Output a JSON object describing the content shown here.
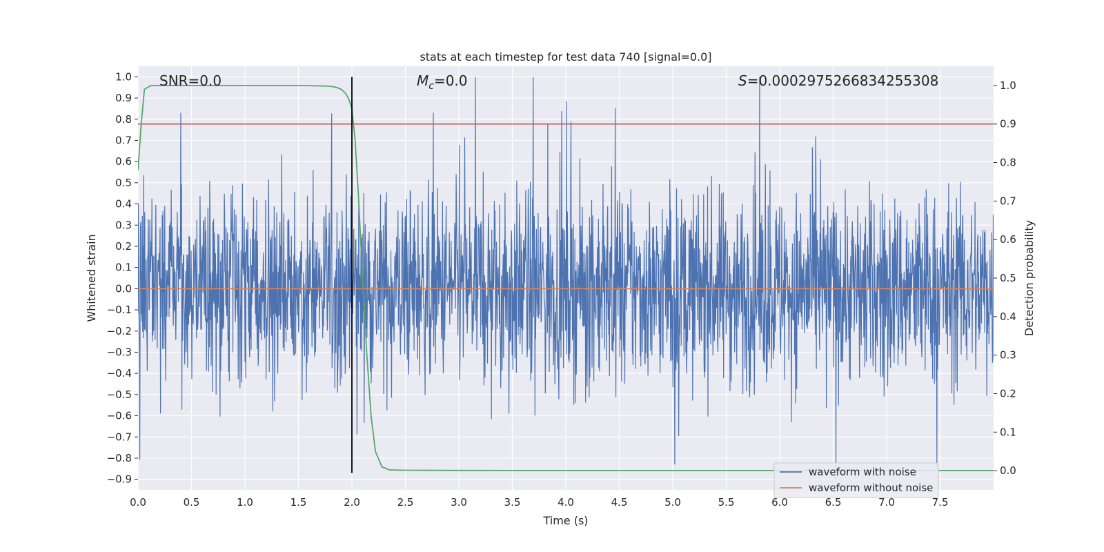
{
  "chart_data": {
    "type": "line",
    "title": "stats at each timestep for test data 740 [signal=0.0]",
    "xlabel": "Time (s)",
    "ylabel_left": "Whitened strain",
    "ylabel_right": "Detection probability",
    "xlim": [
      0.0,
      8.0
    ],
    "ylim_left": [
      -0.95,
      1.05
    ],
    "ylim_right": [
      -0.05,
      1.05
    ],
    "x_ticks": [
      "0.0",
      "0.5",
      "1.0",
      "1.5",
      "2.0",
      "2.5",
      "3.0",
      "3.5",
      "4.0",
      "4.5",
      "5.0",
      "5.5",
      "6.0",
      "6.5",
      "7.0",
      "7.5"
    ],
    "y_left_ticks": [
      "1.0",
      "0.9",
      "0.8",
      "0.7",
      "0.6",
      "0.5",
      "0.4",
      "0.3",
      "0.2",
      "0.1",
      "0.0",
      "-0.1",
      "-0.2",
      "-0.3",
      "-0.4",
      "-0.5",
      "-0.6",
      "-0.7",
      "-0.8",
      "-0.9"
    ],
    "y_right_ticks": [
      "1.0",
      "0.9",
      "0.8",
      "0.7",
      "0.6",
      "0.5",
      "0.4",
      "0.3",
      "0.2",
      "0.1",
      "0.0"
    ],
    "grid": true,
    "legend_position": "bottom-right",
    "annotations": {
      "snr": "SNR=0.0",
      "mc_symbol": "M",
      "mc_sub": "c",
      "mc_value": "=0.0",
      "s_symbol": "S",
      "s_value": "=0.0002975266834255308"
    },
    "series": [
      {
        "name": "waveform with noise",
        "color": "#4c72b0",
        "description_only": false,
        "peak_max": 1.0,
        "peak_min": -0.83,
        "typical_band": [
          -0.45,
          0.45
        ]
      },
      {
        "name": "waveform without noise",
        "color": "#dd8452",
        "y": 0.0
      }
    ],
    "detection_probability": {
      "color": "#55a868",
      "x": [
        0.0,
        0.03,
        0.06,
        0.12,
        0.2,
        0.5,
        1.0,
        1.5,
        1.7,
        1.8,
        1.86,
        1.9,
        1.94,
        1.97,
        2.0,
        2.03,
        2.06,
        2.1,
        2.14,
        2.18,
        2.22,
        2.28,
        2.35,
        2.5,
        3.0,
        4.0,
        5.0,
        6.0,
        7.0,
        8.0
      ],
      "y": [
        0.78,
        0.9,
        0.99,
        1.0,
        1.0,
        1.0,
        1.0,
        1.0,
        0.999,
        0.998,
        0.995,
        0.99,
        0.98,
        0.965,
        0.94,
        0.86,
        0.72,
        0.5,
        0.3,
        0.14,
        0.05,
        0.01,
        0.002,
        0.001,
        0.0005,
        0.0003,
        0.0003,
        0.0003,
        0.0003,
        0.0003
      ]
    },
    "threshold_line": {
      "color": "#c44e52",
      "y_right": 0.9
    },
    "marker_line": {
      "color": "#000000",
      "x": 2.0,
      "y_top": 1.0,
      "y_bottom": -0.87
    }
  }
}
